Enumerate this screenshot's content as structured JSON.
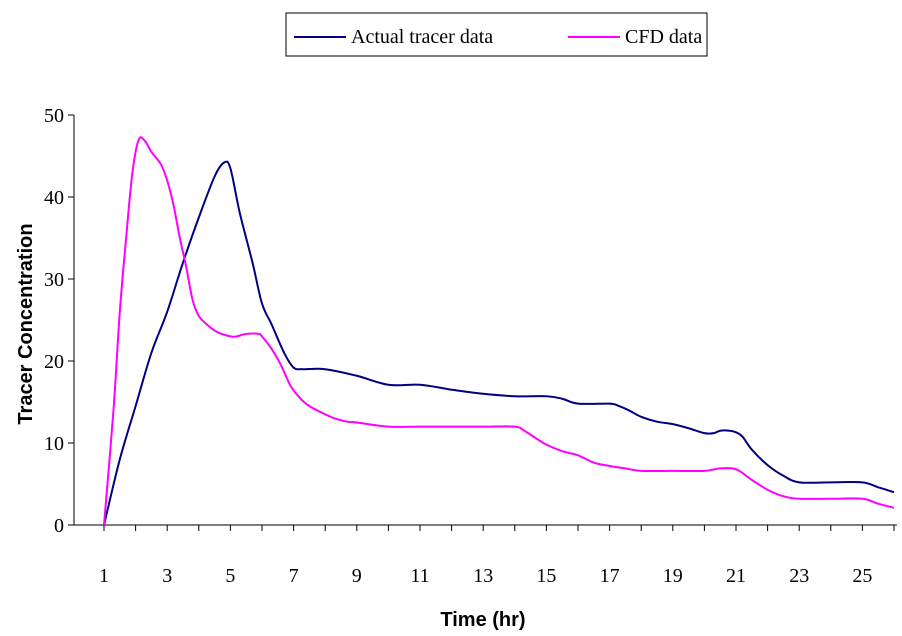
{
  "chart_data": {
    "type": "line",
    "xlabel": "Time (hr)",
    "ylabel": "Tracer Concentration",
    "xlim": [
      1,
      26
    ],
    "ylim": [
      0,
      50
    ],
    "x_ticks": [
      1,
      3,
      5,
      7,
      9,
      11,
      13,
      15,
      17,
      19,
      21,
      23,
      25
    ],
    "y_ticks": [
      0,
      10,
      20,
      30,
      40,
      50
    ],
    "grid": false,
    "legend_position": "top-center",
    "series": [
      {
        "name": "Actual tracer data",
        "color": "#000080",
        "points": [
          [
            1,
            0
          ],
          [
            1.5,
            8
          ],
          [
            2,
            14.5
          ],
          [
            2.5,
            21
          ],
          [
            3,
            26
          ],
          [
            3.5,
            32
          ],
          [
            4,
            37.5
          ],
          [
            4.5,
            42.5
          ],
          [
            4.8,
            44.2
          ],
          [
            5,
            43.5
          ],
          [
            5.3,
            38
          ],
          [
            5.7,
            32
          ],
          [
            6,
            27
          ],
          [
            6.3,
            24.5
          ],
          [
            6.7,
            21
          ],
          [
            7,
            19.2
          ],
          [
            7.3,
            19
          ],
          [
            8,
            19
          ],
          [
            9,
            18.2
          ],
          [
            10,
            17.1
          ],
          [
            11,
            17.1
          ],
          [
            12,
            16.5
          ],
          [
            13,
            16
          ],
          [
            14,
            15.7
          ],
          [
            15,
            15.7
          ],
          [
            15.5,
            15.4
          ],
          [
            16,
            14.8
          ],
          [
            17,
            14.8
          ],
          [
            17.3,
            14.5
          ],
          [
            17.6,
            14
          ],
          [
            18,
            13.2
          ],
          [
            18.5,
            12.6
          ],
          [
            19,
            12.3
          ],
          [
            19.5,
            11.8
          ],
          [
            20,
            11.2
          ],
          [
            20.3,
            11.2
          ],
          [
            20.5,
            11.5
          ],
          [
            20.8,
            11.5
          ],
          [
            21,
            11.3
          ],
          [
            21.2,
            10.8
          ],
          [
            21.5,
            9.2
          ],
          [
            22,
            7.3
          ],
          [
            22.5,
            6
          ],
          [
            23,
            5.2
          ],
          [
            24,
            5.2
          ],
          [
            25,
            5.2
          ],
          [
            25.5,
            4.6
          ],
          [
            26,
            4
          ]
        ]
      },
      {
        "name": "CFD data",
        "color": "#FF00FF",
        "points": [
          [
            1,
            0
          ],
          [
            1.3,
            14
          ],
          [
            1.5,
            26
          ],
          [
            1.7,
            35
          ],
          [
            1.9,
            43
          ],
          [
            2.1,
            47
          ],
          [
            2.3,
            46.8
          ],
          [
            2.5,
            45.5
          ],
          [
            2.8,
            44
          ],
          [
            3,
            42
          ],
          [
            3.2,
            39
          ],
          [
            3.4,
            35
          ],
          [
            3.6,
            31.5
          ],
          [
            3.8,
            27.5
          ],
          [
            4,
            25.5
          ],
          [
            4.3,
            24.3
          ],
          [
            4.6,
            23.5
          ],
          [
            5,
            23
          ],
          [
            5.2,
            23
          ],
          [
            5.5,
            23.3
          ],
          [
            5.9,
            23.3
          ],
          [
            6,
            23
          ],
          [
            6.3,
            21.5
          ],
          [
            6.6,
            19.5
          ],
          [
            6.9,
            17
          ],
          [
            7.2,
            15.5
          ],
          [
            7.5,
            14.5
          ],
          [
            8,
            13.5
          ],
          [
            8.3,
            13
          ],
          [
            8.7,
            12.6
          ],
          [
            9,
            12.5
          ],
          [
            10,
            12
          ],
          [
            11,
            12
          ],
          [
            12,
            12
          ],
          [
            13,
            12
          ],
          [
            14,
            12
          ],
          [
            14.3,
            11.5
          ],
          [
            14.7,
            10.5
          ],
          [
            15,
            9.8
          ],
          [
            15.5,
            9
          ],
          [
            16,
            8.5
          ],
          [
            16.5,
            7.6
          ],
          [
            17,
            7.2
          ],
          [
            17.5,
            6.9
          ],
          [
            18,
            6.6
          ],
          [
            19,
            6.6
          ],
          [
            20,
            6.6
          ],
          [
            20.5,
            6.9
          ],
          [
            21,
            6.8
          ],
          [
            21.5,
            5.5
          ],
          [
            22,
            4.3
          ],
          [
            22.5,
            3.5
          ],
          [
            23,
            3.2
          ],
          [
            24,
            3.2
          ],
          [
            25,
            3.2
          ],
          [
            25.5,
            2.6
          ],
          [
            26,
            2.1
          ]
        ]
      }
    ]
  }
}
